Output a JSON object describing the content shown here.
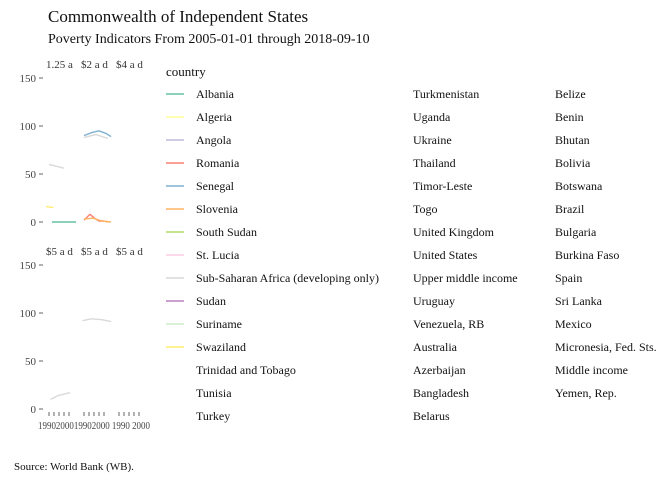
{
  "chart_data": {
    "type": "line",
    "title": "Commonwealth of Independent States",
    "subtitle": "Poverty Indicators From 2005-01-01 through 2018-09-10",
    "caption": "Source: World Bank (WB).",
    "xlabel": "",
    "ylabel": "",
    "ylim": [
      0,
      150
    ],
    "y_ticks": [
      0,
      50,
      100,
      150
    ],
    "x_tick_text": "1990200019902000 1990 2000",
    "panels": [
      {
        "strip": "1.25 a",
        "series": [
          {
            "name": "Albania",
            "x": [
              0.2,
              1.0
            ],
            "y": [
              0,
              0
            ]
          },
          {
            "name": "Swaziland",
            "x": [
              0.0,
              0.25
            ],
            "y": [
              16,
              15
            ]
          },
          {
            "name": "Sub-Saharan Africa (developing only)",
            "x": [
              0.1,
              0.6
            ],
            "y": [
              60,
              56
            ]
          }
        ]
      },
      {
        "strip": "$2 a d",
        "series": [
          {
            "name": "Senegal",
            "x": [
              0.1,
              0.35,
              0.6,
              0.85,
              1.0
            ],
            "y": [
              90,
              93,
              95,
              92,
              89
            ]
          },
          {
            "name": "Sub-Saharan Africa (developing only)",
            "x": [
              0.1,
              0.5,
              0.9
            ],
            "y": [
              88,
              91,
              87
            ]
          },
          {
            "name": "Romania",
            "x": [
              0.1,
              0.3,
              0.45,
              0.6,
              0.75,
              0.9
            ],
            "y": [
              2,
              8,
              4,
              1,
              1,
              0
            ]
          },
          {
            "name": "Slovenia",
            "x": [
              0.1,
              0.4,
              0.7,
              1.0
            ],
            "y": [
              3,
              4,
              1,
              0
            ]
          }
        ]
      },
      {
        "strip": "$4 a d",
        "series": []
      },
      {
        "strip": "$5 a d",
        "series": [
          {
            "name": "Sub-Saharan Africa (developing only)",
            "x": [
              0.15,
              0.4,
              0.8
            ],
            "y": [
              10,
              14,
              17
            ]
          }
        ]
      },
      {
        "strip": "$5 a d",
        "series": [
          {
            "name": "Sub-Saharan Africa (developing only)",
            "x": [
              0.05,
              0.35,
              0.7,
              1.0
            ],
            "y": [
              92,
              94,
              93,
              91
            ]
          }
        ]
      },
      {
        "strip": "$5 a d",
        "series": []
      }
    ],
    "legend": {
      "title": "country",
      "position": "right",
      "items": [
        {
          "label": "Albania",
          "color": "#66c2a5"
        },
        {
          "label": "Algeria",
          "color": "#ffff99"
        },
        {
          "label": "Angola",
          "color": "#bebada"
        },
        {
          "label": "Romania",
          "color": "#fb8072"
        },
        {
          "label": "Senegal",
          "color": "#80b1d3"
        },
        {
          "label": "Slovenia",
          "color": "#fdb462"
        },
        {
          "label": "South Sudan",
          "color": "#b3de69"
        },
        {
          "label": "St. Lucia",
          "color": "#fccde5"
        },
        {
          "label": "Sub-Saharan Africa (developing only)",
          "color": "#d9d9d9"
        },
        {
          "label": "Sudan",
          "color": "#bc80bd"
        },
        {
          "label": "Suriname",
          "color": "#ccebc5"
        },
        {
          "label": "Swaziland",
          "color": "#ffed6f"
        },
        {
          "label": "Trinidad and Tobago",
          "color": ""
        },
        {
          "label": "Tunisia",
          "color": ""
        },
        {
          "label": "Turkey",
          "color": ""
        },
        {
          "label": "Turkmenistan",
          "color": ""
        },
        {
          "label": "Uganda",
          "color": ""
        },
        {
          "label": "Ukraine",
          "color": ""
        },
        {
          "label": "Thailand",
          "color": ""
        },
        {
          "label": "Timor-Leste",
          "color": ""
        },
        {
          "label": "Togo",
          "color": ""
        },
        {
          "label": "United Kingdom",
          "color": ""
        },
        {
          "label": "United States",
          "color": ""
        },
        {
          "label": "Upper middle income",
          "color": ""
        },
        {
          "label": "Uruguay",
          "color": ""
        },
        {
          "label": "Venezuela, RB",
          "color": ""
        },
        {
          "label": "Australia",
          "color": ""
        },
        {
          "label": "Azerbaijan",
          "color": ""
        },
        {
          "label": "Bangladesh",
          "color": ""
        },
        {
          "label": "Belarus",
          "color": ""
        },
        {
          "label": "Belize",
          "color": ""
        },
        {
          "label": "Benin",
          "color": ""
        },
        {
          "label": "Bhutan",
          "color": ""
        },
        {
          "label": "Bolivia",
          "color": ""
        },
        {
          "label": "Botswana",
          "color": ""
        },
        {
          "label": "Brazil",
          "color": ""
        },
        {
          "label": "Bulgaria",
          "color": ""
        },
        {
          "label": "Burkina Faso",
          "color": ""
        },
        {
          "label": "Spain",
          "color": ""
        },
        {
          "label": "Sri Lanka",
          "color": ""
        },
        {
          "label": "Mexico",
          "color": ""
        },
        {
          "label": "Micronesia, Fed. Sts.",
          "color": ""
        },
        {
          "label": "Middle income",
          "color": ""
        },
        {
          "label": "Yemen, Rep.",
          "color": ""
        }
      ]
    }
  }
}
